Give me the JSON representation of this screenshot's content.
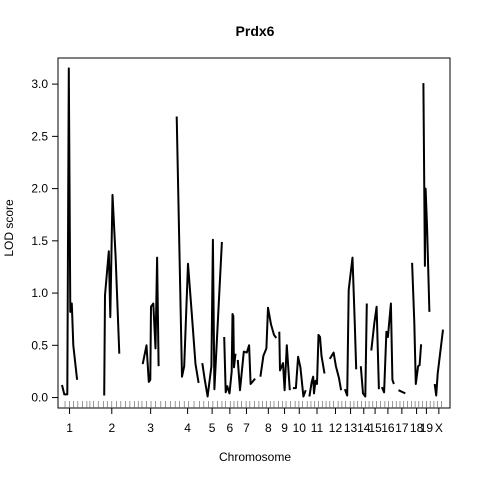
{
  "chart_data": {
    "type": "line",
    "title": "Prdx6",
    "xlabel": "Chromosome",
    "ylabel": "LOD score",
    "ylim": [
      -0.1,
      3.25
    ],
    "yticks": [
      0.0,
      0.5,
      1.0,
      1.5,
      2.0,
      2.5,
      3.0
    ],
    "ytick_labels": [
      "0.0",
      "0.5",
      "1.0",
      "1.5",
      "2.0",
      "2.5",
      "3.0"
    ],
    "grid": false,
    "legend": "none",
    "line_color": "#000000",
    "chromosomes": [
      {
        "label": "1",
        "start": 0,
        "end": 47,
        "points": [
          [
            0,
            0.12
          ],
          [
            3,
            0.03
          ],
          [
            7,
            0.03
          ],
          [
            9,
            3.15
          ],
          [
            11,
            0.82
          ],
          [
            13,
            0.9
          ],
          [
            15,
            0.5
          ],
          [
            20,
            0.17
          ]
        ]
      },
      {
        "label": "2",
        "start": 54,
        "end": 105,
        "points": [
          [
            56,
            0.02
          ],
          [
            57,
            0.98
          ],
          [
            62,
            1.4
          ],
          [
            64,
            0.77
          ],
          [
            67,
            1.94
          ],
          [
            71,
            1.35
          ],
          [
            76,
            0.42
          ]
        ]
      },
      {
        "label": "3",
        "start": 108,
        "end": 143,
        "points": [
          [
            107,
            0.32
          ],
          [
            112,
            0.5
          ],
          [
            115,
            0.15
          ],
          [
            117,
            0.17
          ],
          [
            118,
            0.87
          ],
          [
            121,
            0.9
          ],
          [
            124,
            0.47
          ],
          [
            126,
            1.34
          ],
          [
            128,
            0.3
          ]
        ]
      },
      {
        "label": "4",
        "start": 148,
        "end": 196,
        "points": [
          [
            152,
            2.69
          ],
          [
            159,
            0.2
          ],
          [
            162,
            0.3
          ],
          [
            167,
            1.28
          ],
          [
            172,
            0.8
          ],
          [
            177,
            0.32
          ],
          [
            181,
            0.14
          ]
        ]
      },
      {
        "label": "5",
        "start": 198,
        "end": 245,
        "points": [
          [
            186,
            0.33
          ],
          [
            189,
            0.18
          ],
          [
            193,
            0.01
          ],
          [
            198,
            0.3
          ],
          [
            200,
            1.51
          ],
          [
            202,
            0.08
          ],
          [
            212,
            1.49
          ]
        ]
      },
      {
        "label": "6",
        "start": 248,
        "end": 288,
        "points": [
          [
            215,
            0.58
          ],
          [
            217,
            0.05
          ],
          [
            219,
            0.11
          ],
          [
            222,
            0.04
          ],
          [
            225,
            0.25
          ],
          [
            226,
            0.8
          ],
          [
            227,
            0.78
          ],
          [
            228,
            0.29
          ],
          [
            230,
            0.42
          ]
        ]
      },
      {
        "label": "7",
        "start": 291,
        "end": 326,
        "points": [
          [
            233,
            0.36
          ],
          [
            236,
            0.07
          ],
          [
            241,
            0.44
          ],
          [
            245,
            0.43
          ],
          [
            248,
            0.5
          ],
          [
            250,
            0.13
          ],
          [
            256,
            0.18
          ]
        ]
      },
      {
        "label": "8",
        "start": 337,
        "end": 373,
        "points": [
          [
            263,
            0.2
          ],
          [
            267,
            0.4
          ],
          [
            271,
            0.47
          ],
          [
            273,
            0.86
          ],
          [
            277,
            0.7
          ],
          [
            281,
            0.6
          ],
          [
            284,
            0.57
          ]
        ]
      },
      {
        "label": "9",
        "start": 375,
        "end": 408,
        "points": [
          [
            288,
            0.63
          ],
          [
            289,
            0.26
          ],
          [
            293,
            0.33
          ],
          [
            295,
            0.07
          ],
          [
            298,
            0.5
          ],
          [
            302,
            0.07
          ]
        ]
      },
      {
        "label": "10",
        "start": 415,
        "end": 443,
        "points": [
          [
            306,
            0.09
          ],
          [
            310,
            0.09
          ],
          [
            313,
            0.39
          ],
          [
            316,
            0.29
          ],
          [
            320,
            0.01
          ],
          [
            323,
            0.07
          ]
        ]
      },
      {
        "label": "11",
        "start": 446,
        "end": 486,
        "points": [
          [
            328,
            0.01
          ],
          [
            331,
            0.15
          ],
          [
            333,
            0.2
          ],
          [
            334,
            0.04
          ],
          [
            336,
            0.16
          ],
          [
            338,
            0.13
          ],
          [
            340,
            0.6
          ],
          [
            342,
            0.58
          ],
          [
            344,
            0.4
          ],
          [
            348,
            0.23
          ]
        ]
      },
      {
        "label": "12",
        "start": 492,
        "end": 524,
        "points": [
          [
            355,
            0.37
          ],
          [
            360,
            0.43
          ],
          [
            363,
            0.3
          ],
          [
            367,
            0.19
          ],
          [
            370,
            0.07
          ]
        ]
      },
      {
        "label": "13",
        "start": 528,
        "end": 558,
        "points": [
          [
            375,
            0.08
          ],
          [
            378,
            0.02
          ],
          [
            380,
            1.03
          ],
          [
            385,
            1.34
          ],
          [
            388,
            0.73
          ],
          [
            390,
            0.27
          ]
        ]
      },
      {
        "label": "14",
        "start": 562,
        "end": 586,
        "points": [
          [
            396,
            0.3
          ],
          [
            399,
            0.04
          ],
          [
            402,
            0.01
          ],
          [
            404,
            0.9
          ]
        ]
      },
      {
        "label": "15",
        "start": 590,
        "end": 617,
        "points": [
          [
            410,
            0.45
          ],
          [
            414,
            0.71
          ],
          [
            417,
            0.87
          ],
          [
            420,
            0.08
          ]
        ]
      },
      {
        "label": "16",
        "start": 620,
        "end": 648,
        "points": [
          [
            424,
            0.1
          ],
          [
            427,
            0.05
          ],
          [
            430,
            0.63
          ],
          [
            432,
            0.58
          ],
          [
            436,
            0.9
          ],
          [
            438,
            0.17
          ],
          [
            440,
            0.13
          ]
        ]
      },
      {
        "label": "17",
        "start": 652,
        "end": 676,
        "points": [
          [
            446,
            0.07
          ],
          [
            455,
            0.04
          ]
        ]
      },
      {
        "label": "18",
        "start": 684,
        "end": 702,
        "points": [
          [
            464,
            1.29
          ],
          [
            467,
            0.72
          ],
          [
            469,
            0.13
          ],
          [
            472,
            0.3
          ],
          [
            474,
            0.31
          ],
          [
            476,
            0.51
          ]
        ]
      },
      {
        "label": "19",
        "start": 706,
        "end": 718,
        "points": [
          [
            479,
            3.01
          ],
          [
            481,
            1.26
          ],
          [
            482,
            2.0
          ],
          [
            484,
            1.62
          ],
          [
            487,
            0.82
          ]
        ]
      },
      {
        "label": "X",
        "start": 728,
        "end": 760,
        "points": [
          [
            494,
            0.13
          ],
          [
            496,
            0.02
          ],
          [
            498,
            0.23
          ],
          [
            505,
            0.65
          ]
        ]
      }
    ],
    "xlim": [
      0,
      509
    ],
    "markers": [
      4,
      10,
      15,
      21,
      27,
      33,
      37,
      42,
      48,
      55,
      60,
      66,
      72,
      78,
      84,
      90,
      96,
      101,
      106,
      112,
      118,
      124,
      131,
      137,
      144,
      150,
      156,
      162,
      168,
      175,
      182,
      188,
      194,
      200,
      206,
      212,
      217,
      223,
      228,
      233,
      238,
      244,
      249,
      255,
      261,
      266,
      271,
      276,
      281,
      287,
      292,
      297,
      303,
      309,
      314,
      319,
      325,
      330,
      335,
      340,
      345,
      350,
      355,
      360,
      366,
      371,
      376,
      382,
      387,
      392,
      397,
      402,
      407,
      412,
      417,
      422,
      428,
      433,
      438,
      443,
      448,
      453,
      458,
      463,
      468,
      473,
      478,
      483,
      488,
      493,
      498,
      503
    ]
  }
}
